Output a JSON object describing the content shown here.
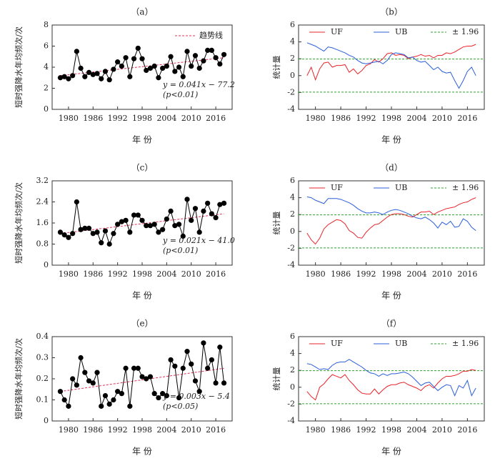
{
  "chart_data": [
    {
      "type": "line",
      "title": "（a）",
      "xlabel": "年 份",
      "ylabel": "短时强降水年均频次/次",
      "x": [
        1978,
        1979,
        1980,
        1981,
        1982,
        1983,
        1984,
        1985,
        1986,
        1987,
        1988,
        1989,
        1990,
        1991,
        1992,
        1993,
        1994,
        1995,
        1996,
        1997,
        1998,
        1999,
        2000,
        2001,
        2002,
        2003,
        2004,
        2005,
        2006,
        2007,
        2008,
        2009,
        2010,
        2011,
        2012,
        2013,
        2014,
        2015,
        2016,
        2017,
        2018
      ],
      "series": [
        {
          "color": "#000000",
          "values": [
            3.0,
            3.1,
            2.9,
            3.2,
            5.5,
            3.9,
            3.1,
            3.5,
            3.3,
            3.4,
            2.9,
            3.6,
            2.8,
            3.8,
            4.5,
            4.1,
            4.9,
            3.1,
            4.8,
            5.8,
            4.8,
            3.7,
            3.9,
            4.1,
            3.0,
            3.9,
            4.1,
            5.0,
            3.6,
            4.0,
            3.1,
            5.5,
            4.1,
            5.1,
            3.9,
            4.6,
            5.6,
            5.6,
            4.9,
            4.3,
            5.2
          ]
        }
      ],
      "trend": {
        "name": "趋势线",
        "color": "#e0305a",
        "x": [
          1978,
          2018
        ],
        "values": [
          3.2,
          4.9
        ]
      },
      "annotations": [
        "y = 0.041x − 77.2",
        "(p<0.01)"
      ],
      "xlim": [
        1976,
        2020
      ],
      "xticks": [
        1980,
        1986,
        1992,
        1998,
        2004,
        2010,
        2016
      ],
      "ylim": [
        0,
        8
      ],
      "yticks": [
        0,
        2,
        4,
        6,
        8
      ]
    },
    {
      "type": "mk",
      "title": "（b）",
      "xlabel": "年 份",
      "ylabel": "统计量",
      "x": [
        1978,
        1979,
        1980,
        1981,
        1982,
        1983,
        1984,
        1985,
        1986,
        1987,
        1988,
        1989,
        1990,
        1991,
        1992,
        1993,
        1994,
        1995,
        1996,
        1997,
        1998,
        1999,
        2000,
        2001,
        2002,
        2003,
        2004,
        2005,
        2006,
        2007,
        2008,
        2009,
        2010,
        2011,
        2012,
        2013,
        2014,
        2015,
        2016,
        2017,
        2018
      ],
      "series": [
        {
          "name": "UF",
          "color": "#e8232a",
          "values": [
            0,
            1.0,
            -0.5,
            0.8,
            1.5,
            1.6,
            1.0,
            1.2,
            1.2,
            1.3,
            0.4,
            0.8,
            0.2,
            0.6,
            1.2,
            1.4,
            1.9,
            1.6,
            2.0,
            2.6,
            2.7,
            2.4,
            2.5,
            2.4,
            2.0,
            2.2,
            2.3,
            2.5,
            2.3,
            2.4,
            2.1,
            2.4,
            2.4,
            2.7,
            2.6,
            2.8,
            3.1,
            3.4,
            3.5,
            3.5,
            3.7
          ]
        },
        {
          "name": "UB",
          "color": "#2b5fd9",
          "values": [
            3.9,
            3.7,
            3.5,
            3.2,
            2.9,
            3.4,
            3.3,
            3.1,
            2.9,
            2.7,
            2.4,
            2.2,
            1.8,
            1.5,
            1.4,
            1.5,
            1.6,
            1.7,
            1.4,
            1.8,
            2.5,
            2.7,
            2.6,
            2.5,
            2.1,
            2.2,
            1.8,
            1.6,
            1.7,
            1.2,
            0.7,
            1.0,
            0.5,
            0.3,
            0.4,
            -0.6,
            -1.5,
            -0.6,
            0.5,
            1.0,
            0.0
          ]
        }
      ],
      "thresholds": {
        "name": "± 1.96",
        "color": "#2ca02c",
        "values": [
          1.96,
          -1.96
        ]
      },
      "xlim": [
        1976,
        2020
      ],
      "xticks": [
        1980,
        1986,
        1992,
        1998,
        2004,
        2010,
        2016
      ],
      "ylim": [
        -4,
        6
      ],
      "yticks": [
        -4,
        -2,
        0,
        2,
        4,
        6
      ]
    },
    {
      "type": "line",
      "title": "（c）",
      "xlabel": "年 份",
      "ylabel": "短时强降水年均频次/次",
      "x": [
        1978,
        1979,
        1980,
        1981,
        1982,
        1983,
        1984,
        1985,
        1986,
        1987,
        1988,
        1989,
        1990,
        1991,
        1992,
        1993,
        1994,
        1995,
        1996,
        1997,
        1998,
        1999,
        2000,
        2001,
        2002,
        2003,
        2004,
        2005,
        2006,
        2007,
        2008,
        2009,
        2010,
        2011,
        2012,
        2013,
        2014,
        2015,
        2016,
        2017,
        2018
      ],
      "series": [
        {
          "color": "#000000",
          "values": [
            1.25,
            1.15,
            1.05,
            1.2,
            2.4,
            1.35,
            1.4,
            1.4,
            1.2,
            1.25,
            0.85,
            1.3,
            0.8,
            1.2,
            1.55,
            1.65,
            1.7,
            1.25,
            1.9,
            1.9,
            1.7,
            1.5,
            1.5,
            1.55,
            1.25,
            1.35,
            1.75,
            2.05,
            1.5,
            1.55,
            1.1,
            2.5,
            1.7,
            2.15,
            1.25,
            2.05,
            2.35,
            1.95,
            1.8,
            2.3,
            2.35
          ]
        }
      ],
      "trend": {
        "color": "#e0305a",
        "x": [
          1978,
          2018
        ],
        "values": [
          1.2,
          1.95
        ]
      },
      "annotations": [
        "y = 0.021x − 41.0",
        "(p<0.01)"
      ],
      "xlim": [
        1976,
        2020
      ],
      "xticks": [
        1980,
        1986,
        1992,
        1998,
        2004,
        2010,
        2016
      ],
      "ylim": [
        0,
        3.2
      ],
      "yticks": [
        0,
        0.8,
        1.6,
        2.4,
        3.2
      ]
    },
    {
      "type": "mk",
      "title": "（d）",
      "xlabel": "年 份",
      "ylabel": "统计量",
      "x": [
        1978,
        1979,
        1980,
        1981,
        1982,
        1983,
        1984,
        1985,
        1986,
        1987,
        1988,
        1989,
        1990,
        1991,
        1992,
        1993,
        1994,
        1995,
        1996,
        1997,
        1998,
        1999,
        2000,
        2001,
        2002,
        2003,
        2004,
        2005,
        2006,
        2007,
        2008,
        2009,
        2010,
        2011,
        2012,
        2013,
        2014,
        2015,
        2016,
        2017,
        2018
      ],
      "series": [
        {
          "name": "UF",
          "color": "#e8232a",
          "values": [
            -0.2,
            -1.0,
            -1.5,
            -0.8,
            0.3,
            0.8,
            1.1,
            1.4,
            1.3,
            0.9,
            0.1,
            -0.2,
            -0.7,
            -0.8,
            -0.1,
            0.4,
            0.8,
            0.9,
            1.3,
            1.7,
            2.0,
            2.1,
            2.1,
            2.0,
            1.8,
            1.7,
            2.0,
            2.3,
            2.3,
            2.4,
            2.0,
            2.3,
            2.5,
            2.7,
            2.8,
            2.9,
            3.2,
            3.4,
            3.5,
            3.8,
            4.0
          ]
        },
        {
          "name": "UB",
          "color": "#2b5fd9",
          "values": [
            4.1,
            4.0,
            3.7,
            3.5,
            3.3,
            3.9,
            3.9,
            3.9,
            3.8,
            3.6,
            3.4,
            3.1,
            2.7,
            2.4,
            2.2,
            2.2,
            2.3,
            2.2,
            2.0,
            2.3,
            2.5,
            2.6,
            2.5,
            2.3,
            2.1,
            1.8,
            1.6,
            1.5,
            1.7,
            1.4,
            1.0,
            0.4,
            1.1,
            0.8,
            1.2,
            0.5,
            0.6,
            1.5,
            1.2,
            0.5,
            0.1
          ]
        }
      ],
      "thresholds": {
        "name": "± 1.96",
        "color": "#2ca02c",
        "values": [
          1.96,
          -1.96
        ]
      },
      "xlim": [
        1976,
        2020
      ],
      "xticks": [
        1980,
        1986,
        1992,
        1998,
        2004,
        2010,
        2016
      ],
      "ylim": [
        -4,
        6
      ],
      "yticks": [
        -4,
        -2,
        0,
        2,
        4,
        6
      ]
    },
    {
      "type": "line",
      "title": "（e）",
      "xlabel": "年 份",
      "ylabel": "短时强降水年均频次/次",
      "x": [
        1978,
        1979,
        1980,
        1981,
        1982,
        1983,
        1984,
        1985,
        1986,
        1987,
        1988,
        1989,
        1990,
        1991,
        1992,
        1993,
        1994,
        1995,
        1996,
        1997,
        1998,
        1999,
        2000,
        2001,
        2002,
        2003,
        2004,
        2005,
        2006,
        2007,
        2008,
        2009,
        2010,
        2011,
        2012,
        2013,
        2014,
        2015,
        2016,
        2017,
        2018
      ],
      "series": [
        {
          "color": "#000000",
          "values": [
            0.14,
            0.1,
            0.07,
            0.2,
            0.17,
            0.3,
            0.23,
            0.19,
            0.18,
            0.23,
            0.07,
            0.12,
            0.08,
            0.1,
            0.14,
            0.13,
            0.25,
            0.07,
            0.25,
            0.25,
            0.21,
            0.2,
            0.21,
            0.13,
            0.11,
            0.13,
            0.12,
            0.29,
            0.26,
            0.11,
            0.25,
            0.33,
            0.27,
            0.19,
            0.14,
            0.37,
            0.25,
            0.29,
            0.18,
            0.35,
            0.18
          ]
        }
      ],
      "trend": {
        "color": "#e0305a",
        "x": [
          1978,
          2018
        ],
        "values": [
          0.14,
          0.25
        ]
      },
      "annotations": [
        "y = 0.003x − 5.4",
        "(p<0.05)"
      ],
      "xlim": [
        1976,
        2020
      ],
      "xticks": [
        1980,
        1986,
        1992,
        1998,
        2004,
        2010,
        2016
      ],
      "ylim": [
        0,
        0.4
      ],
      "yticks": [
        0,
        0.1,
        0.2,
        0.3,
        0.4
      ]
    },
    {
      "type": "mk",
      "title": "（f）",
      "xlabel": "年 份",
      "ylabel": "统计量",
      "x": [
        1978,
        1979,
        1980,
        1981,
        1982,
        1983,
        1984,
        1985,
        1986,
        1987,
        1988,
        1989,
        1990,
        1991,
        1992,
        1993,
        1994,
        1995,
        1996,
        1997,
        1998,
        1999,
        2000,
        2001,
        2002,
        2003,
        2004,
        2005,
        2006,
        2007,
        2008,
        2009,
        2010,
        2011,
        2012,
        2013,
        2014,
        2015,
        2016,
        2017,
        2018
      ],
      "series": [
        {
          "name": "UF",
          "color": "#e8232a",
          "values": [
            -0.5,
            -1.1,
            -1.5,
            0.0,
            0.4,
            1.0,
            1.5,
            1.3,
            1.1,
            1.5,
            0.8,
            0.3,
            -0.3,
            -0.7,
            -0.8,
            -0.8,
            -0.2,
            -0.8,
            -0.3,
            0.1,
            0.3,
            0.3,
            0.5,
            0.6,
            0.3,
            0.1,
            -0.1,
            -0.4,
            0.1,
            0.3,
            -0.1,
            0.5,
            1.0,
            1.3,
            1.3,
            1.4,
            1.6,
            1.9,
            1.9,
            2.1,
            2.0
          ]
        },
        {
          "name": "UB",
          "color": "#2b5fd9",
          "values": [
            2.8,
            2.7,
            2.4,
            2.1,
            2.2,
            2.1,
            2.6,
            2.9,
            3.0,
            3.0,
            3.3,
            3.0,
            2.7,
            2.4,
            2.0,
            1.7,
            1.6,
            1.3,
            1.6,
            1.4,
            1.6,
            1.6,
            1.7,
            1.8,
            1.6,
            1.2,
            0.7,
            0.2,
            0.5,
            0.6,
            0.1,
            -0.4,
            0.0,
            0.3,
            0.2,
            -1.0,
            0.2,
            -0.1,
            0.8,
            -1.0,
            -0.1
          ]
        }
      ],
      "thresholds": {
        "name": "± 1.96",
        "color": "#2ca02c",
        "values": [
          1.96,
          -1.96
        ]
      },
      "xlim": [
        1976,
        2020
      ],
      "xticks": [
        1980,
        1986,
        1992,
        1998,
        2004,
        2010,
        2016
      ],
      "ylim": [
        -4,
        6
      ],
      "yticks": [
        -4,
        -2,
        0,
        2,
        4,
        6
      ]
    }
  ]
}
